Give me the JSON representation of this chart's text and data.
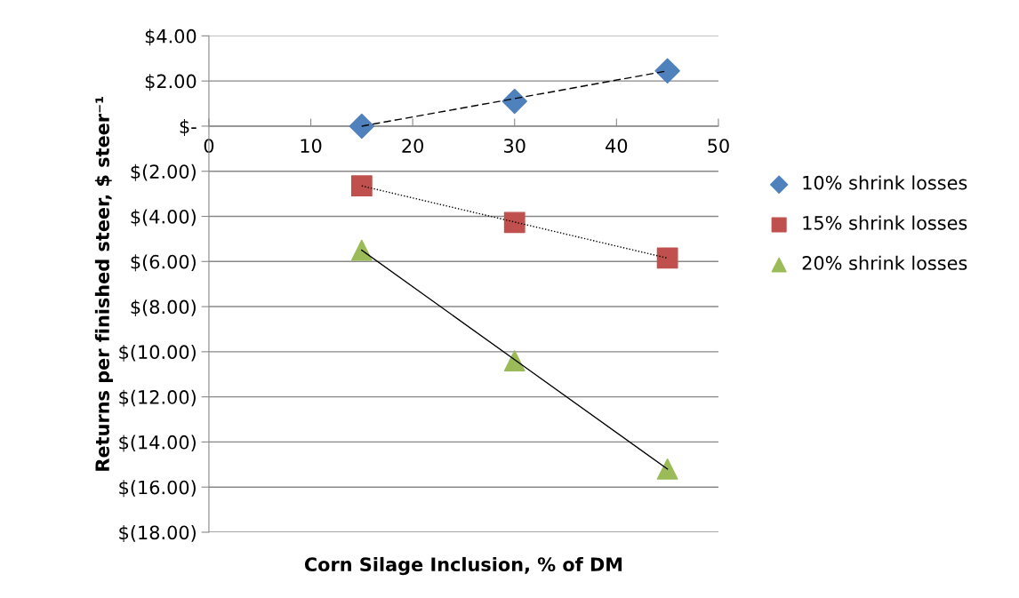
{
  "chart_data": {
    "type": "scatter",
    "xlabel": "Corn Silage Inclusion, % of DM",
    "ylabel": "Returns per finished steer, $ steer⁻¹",
    "x": [
      15,
      30,
      45
    ],
    "series": [
      {
        "name": "10% shrink losses",
        "color": "#4f81bd",
        "marker": "diamond",
        "values": [
          0,
          1.1,
          2.45
        ]
      },
      {
        "name": "15% shrink losses",
        "color": "#c0504d",
        "marker": "square",
        "values": [
          -2.65,
          -4.27,
          -5.85
        ]
      },
      {
        "name": "20% shrink losses",
        "color": "#9bbb59",
        "marker": "triangle",
        "values": [
          -5.5,
          -10.4,
          -15.2
        ]
      },
      {
        "type": "line",
        "color": "#000000",
        "marker": "none",
        "line_style": "dashed",
        "values": [
          0,
          1.22,
          2.45
        ]
      },
      {
        "type": "line",
        "color": "#000000",
        "marker": "none",
        "line_style": "dotted",
        "values": [
          -2.65,
          -4.25,
          -5.85
        ]
      },
      {
        "type": "line",
        "color": "#000000",
        "marker": "none",
        "line_style": "solid",
        "values": [
          -5.5,
          -10.35,
          -15.2
        ]
      }
    ],
    "xlim": [
      0,
      50
    ],
    "xticks": [
      0,
      10,
      20,
      30,
      40,
      50
    ],
    "ylim": [
      -18,
      4
    ],
    "yticks": [
      {
        "value": -18,
        "label": "$(18.00)"
      },
      {
        "value": -16,
        "label": "$(16.00)"
      },
      {
        "value": -14,
        "label": "$(14.00)"
      },
      {
        "value": -12,
        "label": "$(12.00)"
      },
      {
        "value": -10,
        "label": "$(10.00)"
      },
      {
        "value": -8,
        "label": "$(8.00)"
      },
      {
        "value": -6,
        "label": "$(6.00)"
      },
      {
        "value": -4,
        "label": "$(4.00)"
      },
      {
        "value": -2,
        "label": "$(2.00)"
      },
      {
        "value": 0,
        "label": "$-"
      },
      {
        "value": 2,
        "label": "$2.00"
      },
      {
        "value": 4,
        "label": "$4.00"
      }
    ],
    "grid": "y",
    "legend": "right"
  }
}
